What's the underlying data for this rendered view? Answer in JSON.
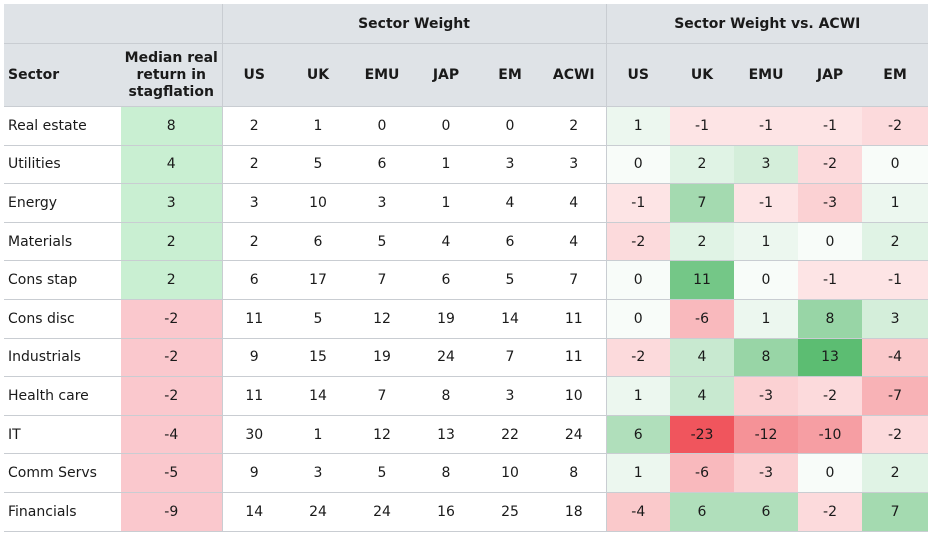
{
  "header": {
    "group_sector_weight": "Sector Weight",
    "group_vs_acwi": "Sector Weight vs. ACWI",
    "col_sector": "Sector",
    "col_median": [
      "Median real",
      "return in",
      "stagflation"
    ],
    "weight_cols": [
      "US",
      "UK",
      "EMU",
      "JAP",
      "EM",
      "ACWI"
    ],
    "vs_cols": [
      "US",
      "UK",
      "EMU",
      "JAP",
      "EM"
    ]
  },
  "rows": [
    {
      "sector": "Real estate",
      "median": "8",
      "weights": [
        "2",
        "1",
        "0",
        "0",
        "0",
        "2"
      ],
      "vs": [
        "1",
        "-1",
        "-1",
        "-1",
        "-2"
      ]
    },
    {
      "sector": "Utilities",
      "median": "4",
      "weights": [
        "2",
        "5",
        "6",
        "1",
        "3",
        "3"
      ],
      "vs": [
        "0",
        "2",
        "3",
        "-2",
        "0"
      ]
    },
    {
      "sector": "Energy",
      "median": "3",
      "weights": [
        "3",
        "10",
        "3",
        "1",
        "4",
        "4"
      ],
      "vs": [
        "-1",
        "7",
        "-1",
        "-3",
        "1"
      ]
    },
    {
      "sector": "Materials",
      "median": "2",
      "weights": [
        "2",
        "6",
        "5",
        "4",
        "6",
        "4"
      ],
      "vs": [
        "-2",
        "2",
        "1",
        "0",
        "2"
      ]
    },
    {
      "sector": "Cons stap",
      "median": "2",
      "weights": [
        "6",
        "17",
        "7",
        "6",
        "5",
        "7"
      ],
      "vs": [
        "0",
        "11",
        "0",
        "-1",
        "-1"
      ]
    },
    {
      "sector": "Cons disc",
      "median": "-2",
      "weights": [
        "11",
        "5",
        "12",
        "19",
        "14",
        "11"
      ],
      "vs": [
        "0",
        "-6",
        "1",
        "8",
        "3"
      ]
    },
    {
      "sector": "Industrials",
      "median": "-2",
      "weights": [
        "9",
        "15",
        "19",
        "24",
        "7",
        "11"
      ],
      "vs": [
        "-2",
        "4",
        "8",
        "13",
        "-4"
      ]
    },
    {
      "sector": "Health care",
      "median": "-2",
      "weights": [
        "11",
        "14",
        "7",
        "8",
        "3",
        "10"
      ],
      "vs": [
        "1",
        "4",
        "-3",
        "-2",
        "-7"
      ]
    },
    {
      "sector": "IT",
      "median": "-4",
      "weights": [
        "30",
        "1",
        "12",
        "13",
        "22",
        "24"
      ],
      "vs": [
        "6",
        "-23",
        "-12",
        "-10",
        "-2"
      ]
    },
    {
      "sector": "Comm Servs",
      "median": "-5",
      "weights": [
        "9",
        "3",
        "5",
        "8",
        "10",
        "8"
      ],
      "vs": [
        "1",
        "-6",
        "-3",
        "0",
        "2"
      ]
    },
    {
      "sector": "Financials",
      "median": "-9",
      "weights": [
        "14",
        "24",
        "24",
        "16",
        "25",
        "18"
      ],
      "vs": [
        "-4",
        "6",
        "6",
        "-2",
        "7"
      ]
    }
  ],
  "colors": {
    "median_positive": "#c9efd2",
    "median_negative": "#fac8cd",
    "header_bg": "#dfe3e7",
    "grid": "#c9cdd2",
    "heat_positive": "#5cbd72",
    "heat_negative": "#f0555d"
  }
}
